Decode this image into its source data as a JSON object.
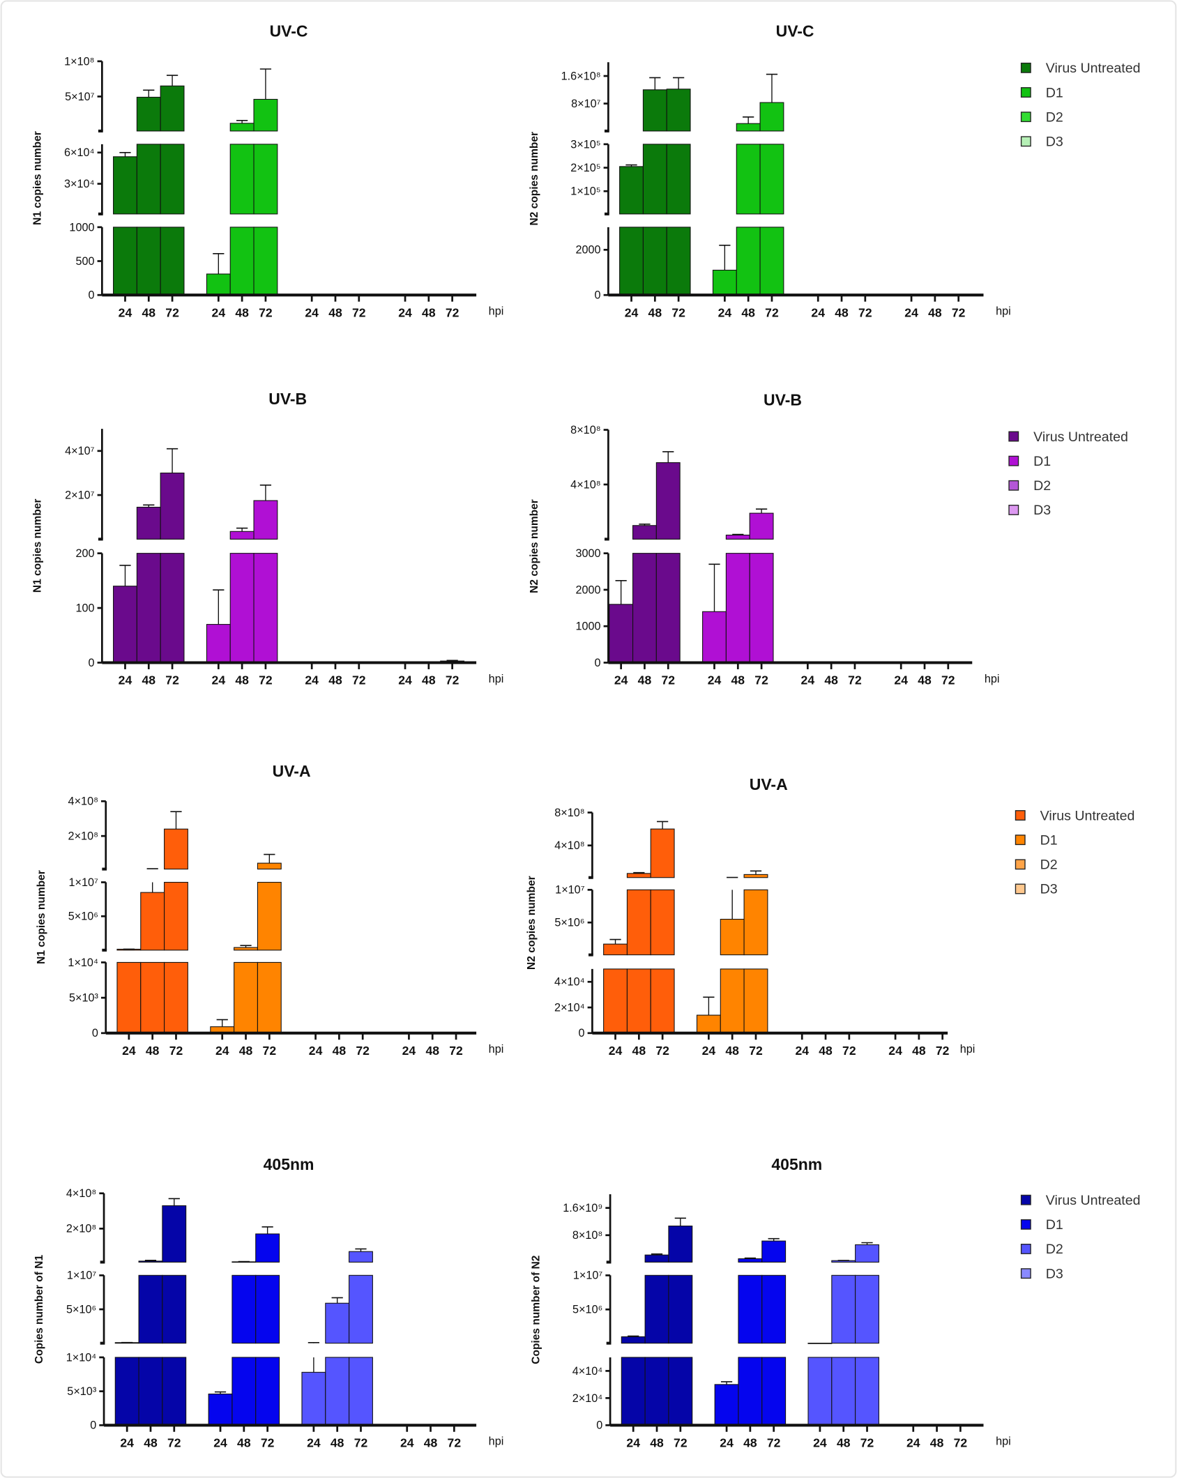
{
  "chart_data": [
    {
      "type": "bar",
      "title": "UV-C",
      "ylabel": "N1 copies number",
      "xlabel": "hpi",
      "categories": [
        "24",
        "48",
        "72"
      ],
      "legend_placement": "none",
      "y_segments": [
        {
          "range": [
            0,
            1000
          ],
          "ticks": [
            {
              "value": 0,
              "label": "0"
            },
            {
              "value": 500,
              "label": "500"
            },
            {
              "value": 1000,
              "label": "1000"
            }
          ]
        },
        {
          "range": [
            1000,
            68000
          ],
          "ticks": [
            {
              "value": 30000,
              "label": "3×10⁴"
            },
            {
              "value": 60000,
              "label": "6×10⁴"
            }
          ]
        },
        {
          "range": [
            1000000,
            100000000
          ],
          "ticks": [
            {
              "value": 50000000,
              "label": "5×10⁷"
            },
            {
              "value": 100000000,
              "label": "1×10⁸"
            }
          ]
        }
      ],
      "series": [
        {
          "name": "Virus Untreated",
          "color": "#0b7a0b",
          "values": [
            56000,
            49000000,
            65000000
          ],
          "errors": [
            60000,
            59000000,
            80000000
          ]
        },
        {
          "name": "D1",
          "color": "#12c212",
          "values": [
            310,
            12000000,
            46000000
          ],
          "errors": [
            610,
            16000000,
            89000000
          ]
        },
        {
          "name": "D2",
          "color": "#33dd33",
          "values": [
            0,
            0,
            0
          ],
          "errors": [
            0,
            0,
            0
          ]
        },
        {
          "name": "D3",
          "color": "#b6f0b6",
          "values": [
            0,
            0,
            0
          ],
          "errors": [
            0,
            0,
            0
          ]
        }
      ]
    },
    {
      "type": "bar",
      "title": "UV-C",
      "ylabel": "N2 copies number",
      "xlabel": "hpi",
      "categories": [
        "24",
        "48",
        "72"
      ],
      "legend_placement": "right",
      "y_segments": [
        {
          "range": [
            0,
            3000
          ],
          "ticks": [
            {
              "value": 0,
              "label": "0"
            },
            {
              "value": 2000,
              "label": "2000"
            }
          ]
        },
        {
          "range": [
            3000,
            300000
          ],
          "ticks": [
            {
              "value": 100000,
              "label": "1×10⁵"
            },
            {
              "value": 200000,
              "label": "2×10⁵"
            },
            {
              "value": 300000,
              "label": "3×10⁵"
            }
          ]
        },
        {
          "range": [
            300000,
            200000000
          ],
          "ticks": [
            {
              "value": 80000000,
              "label": "8×10⁷"
            },
            {
              "value": 160000000,
              "label": "1.6×10⁸"
            }
          ]
        }
      ],
      "series": [
        {
          "name": "Virus Untreated",
          "color": "#0b7a0b",
          "values": [
            205000,
            120000000,
            122000000
          ],
          "errors": [
            212000,
            155000000,
            155000000
          ]
        },
        {
          "name": "D1",
          "color": "#12c212",
          "values": [
            1100,
            22000000,
            83000000
          ],
          "errors": [
            2200,
            41000000,
            165000000
          ]
        },
        {
          "name": "D2",
          "color": "#33dd33",
          "values": [
            0,
            0,
            0
          ],
          "errors": [
            0,
            0,
            0
          ]
        },
        {
          "name": "D3",
          "color": "#b6f0b6",
          "values": [
            0,
            0,
            0
          ],
          "errors": [
            0,
            0,
            0
          ]
        }
      ]
    },
    {
      "type": "bar",
      "title": "UV-B",
      "ylabel": "N1 copies number",
      "xlabel": "hpi",
      "categories": [
        "24",
        "48",
        "72"
      ],
      "legend_placement": "none",
      "y_segments": [
        {
          "range": [
            0,
            200
          ],
          "ticks": [
            {
              "value": 0,
              "label": "0"
            },
            {
              "value": 100,
              "label": "100"
            },
            {
              "value": 200,
              "label": "200"
            }
          ]
        },
        {
          "range": [
            200,
            50000000
          ],
          "ticks": [
            {
              "value": 20000000,
              "label": "2×10⁷"
            },
            {
              "value": 40000000,
              "label": "4×10⁷"
            }
          ]
        }
      ],
      "series": [
        {
          "name": "Virus Untreated",
          "color": "#6a0a8c",
          "values": [
            140,
            14500000,
            30000000
          ],
          "errors": [
            178,
            15500000,
            41000000
          ]
        },
        {
          "name": "D1",
          "color": "#b010d4",
          "values": [
            70,
            3500000,
            17500000
          ],
          "errors": [
            133,
            5000000,
            24500000
          ]
        },
        {
          "name": "D2",
          "color": "#b456d8",
          "values": [
            1,
            1,
            1
          ],
          "errors": [
            1,
            1,
            1
          ]
        },
        {
          "name": "D3",
          "color": "#dc98f0",
          "values": [
            0,
            0,
            3
          ],
          "errors": [
            0,
            0,
            4
          ]
        }
      ]
    },
    {
      "type": "bar",
      "title": "UV-B",
      "ylabel": "N2 copies number",
      "xlabel": "hpi",
      "categories": [
        "24",
        "48",
        "72"
      ],
      "legend_placement": "right",
      "y_segments": [
        {
          "range": [
            0,
            3000
          ],
          "ticks": [
            {
              "value": 0,
              "label": "0"
            },
            {
              "value": 1000,
              "label": "1000"
            },
            {
              "value": 2000,
              "label": "2000"
            },
            {
              "value": 3000,
              "label": "3000"
            }
          ]
        },
        {
          "range": [
            3000,
            800000000
          ],
          "ticks": [
            {
              "value": 400000000,
              "label": "4×10⁸"
            },
            {
              "value": 800000000,
              "label": "8×10⁸"
            }
          ]
        }
      ],
      "series": [
        {
          "name": "Virus Untreated",
          "color": "#6a0a8c",
          "values": [
            1600,
            100000000,
            560000000
          ],
          "errors": [
            2250,
            110000000,
            640000000
          ]
        },
        {
          "name": "D1",
          "color": "#b010d4",
          "values": [
            1400,
            30000000,
            190000000
          ],
          "errors": [
            2700,
            35000000,
            220000000
          ]
        },
        {
          "name": "D2",
          "color": "#b456d8",
          "values": [
            0,
            0,
            0
          ],
          "errors": [
            0,
            0,
            0
          ]
        },
        {
          "name": "D3",
          "color": "#dc98f0",
          "values": [
            0,
            0,
            0
          ],
          "errors": [
            0,
            0,
            0
          ]
        }
      ]
    },
    {
      "type": "bar",
      "title": "UV-A",
      "ylabel": "N1 copies number",
      "xlabel": "hpi",
      "categories": [
        "24",
        "48",
        "72"
      ],
      "legend_placement": "none",
      "y_segments": [
        {
          "range": [
            0,
            10000
          ],
          "ticks": [
            {
              "value": 0,
              "label": "0"
            },
            {
              "value": 5000,
              "label": "5×10³"
            },
            {
              "value": 10000,
              "label": "1×10⁴"
            }
          ]
        },
        {
          "range": [
            10000,
            10000000
          ],
          "ticks": [
            {
              "value": 5000000,
              "label": "5×10⁶"
            },
            {
              "value": 10000000,
              "label": "1×10⁷"
            }
          ]
        },
        {
          "range": [
            10000000,
            400000000
          ],
          "ticks": [
            {
              "value": 200000000,
              "label": "2×10⁸"
            },
            {
              "value": 400000000,
              "label": "4×10⁸"
            }
          ]
        }
      ],
      "series": [
        {
          "name": "Virus Untreated",
          "color": "#ff5e0a",
          "values": [
            150000,
            8500000,
            240000000
          ],
          "errors": [
            160000,
            12000000,
            340000000
          ]
        },
        {
          "name": "D1",
          "color": "#ff8400",
          "values": [
            900,
            400000,
            44000000
          ],
          "errors": [
            1900,
            700000,
            94000000
          ]
        },
        {
          "name": "D2",
          "color": "#ffa448",
          "values": [
            0,
            0,
            0
          ],
          "errors": [
            0,
            0,
            0
          ]
        },
        {
          "name": "D3",
          "color": "#ffc88e",
          "values": [
            0,
            0,
            0
          ],
          "errors": [
            0,
            0,
            0
          ]
        }
      ]
    },
    {
      "type": "bar",
      "title": "UV-A",
      "ylabel": "N2 copies number",
      "xlabel": "hpi",
      "categories": [
        "24",
        "48",
        "72"
      ],
      "legend_placement": "right",
      "y_segments": [
        {
          "range": [
            0,
            50000
          ],
          "ticks": [
            {
              "value": 0,
              "label": "0"
            },
            {
              "value": 20000,
              "label": "2×10⁴"
            },
            {
              "value": 40000,
              "label": "4×10⁴"
            }
          ]
        },
        {
          "range": [
            50000,
            10000000
          ],
          "ticks": [
            {
              "value": 5000000,
              "label": "5×10⁶"
            },
            {
              "value": 10000000,
              "label": "1×10⁷"
            }
          ]
        },
        {
          "range": [
            10000000,
            800000000
          ],
          "ticks": [
            {
              "value": 400000000,
              "label": "4×10⁸"
            },
            {
              "value": 800000000,
              "label": "8×10⁸"
            }
          ]
        }
      ],
      "series": [
        {
          "name": "Virus Untreated",
          "color": "#ff5e0a",
          "values": [
            1700000,
            60000000,
            600000000
          ],
          "errors": [
            2400000,
            70000000,
            690000000
          ]
        },
        {
          "name": "D1",
          "color": "#ff8400",
          "values": [
            14000,
            5500000,
            47000000
          ],
          "errors": [
            28000,
            12000000,
            90000000
          ]
        },
        {
          "name": "D2",
          "color": "#ffa448",
          "values": [
            0,
            0,
            0
          ],
          "errors": [
            0,
            0,
            0
          ]
        },
        {
          "name": "D3",
          "color": "#ffc88e",
          "values": [
            0,
            0,
            0
          ],
          "errors": [
            0,
            0,
            0
          ]
        }
      ]
    },
    {
      "type": "bar",
      "title": "405nm",
      "ylabel": "Copies number of N1",
      "xlabel": "hpi",
      "categories": [
        "24",
        "48",
        "72"
      ],
      "legend_placement": "none",
      "y_segments": [
        {
          "range": [
            0,
            10000
          ],
          "ticks": [
            {
              "value": 0,
              "label": "0"
            },
            {
              "value": 5000,
              "label": "5×10³"
            },
            {
              "value": 10000,
              "label": "1×10⁴"
            }
          ]
        },
        {
          "range": [
            10000,
            10000000
          ],
          "ticks": [
            {
              "value": 5000000,
              "label": "5×10⁶"
            },
            {
              "value": 10000000,
              "label": "1×10⁷"
            }
          ]
        },
        {
          "range": [
            10000000,
            400000000
          ],
          "ticks": [
            {
              "value": 200000000,
              "label": "2×10⁸"
            },
            {
              "value": 400000000,
              "label": "4×10⁸"
            }
          ]
        }
      ],
      "series": [
        {
          "name": "Virus Untreated",
          "color": "#0505a8",
          "values": [
            100000,
            16000000,
            330000000
          ],
          "errors": [
            110000,
            20000000,
            370000000
          ],
          "note": ""
        },
        {
          "name": "D1",
          "color": "#0505ee",
          "values": [
            4600,
            12000000,
            170000000
          ],
          "errors": [
            4900,
            13000000,
            210000000
          ]
        },
        {
          "name": "D2",
          "color": "#5555ff",
          "values": [
            7800,
            5900000,
            70000000
          ],
          "errors": [
            100000,
            6700000,
            85000000
          ]
        },
        {
          "name": "D3",
          "color": "#8a8aff",
          "values": [
            0,
            0,
            0
          ],
          "errors": [
            0,
            0,
            0
          ]
        }
      ]
    },
    {
      "type": "bar",
      "title": "405nm",
      "ylabel": "Copies number of N2",
      "xlabel": "hpi",
      "categories": [
        "24",
        "48",
        "72"
      ],
      "legend_placement": "right",
      "y_segments": [
        {
          "range": [
            0,
            50000
          ],
          "ticks": [
            {
              "value": 0,
              "label": "0"
            },
            {
              "value": 20000,
              "label": "2×10⁴"
            },
            {
              "value": 40000,
              "label": "4×10⁴"
            }
          ]
        },
        {
          "range": [
            50000,
            10000000
          ],
          "ticks": [
            {
              "value": 5000000,
              "label": "5×10⁶"
            },
            {
              "value": 10000000,
              "label": "1×10⁷"
            }
          ]
        },
        {
          "range": [
            10000000,
            2000000000
          ],
          "ticks": [
            {
              "value": 800000000,
              "label": "8×10⁸"
            },
            {
              "value": 1600000000,
              "label": "1.6×10⁹"
            }
          ]
        }
      ],
      "series": [
        {
          "name": "Virus Untreated",
          "color": "#0505a8",
          "values": [
            1000000,
            220000000,
            1070000000
          ],
          "errors": [
            1100000,
            250000000,
            1300000000
          ]
        },
        {
          "name": "D1",
          "color": "#0505ee",
          "values": [
            30000,
            110000000,
            630000000
          ],
          "errors": [
            32000,
            130000000,
            700000000
          ]
        },
        {
          "name": "D2",
          "color": "#5555ff",
          "values": [
            60000,
            55000000,
            520000000
          ],
          "errors": [
            60000,
            60000000,
            580000000
          ]
        },
        {
          "name": "D3",
          "color": "#8a8aff",
          "values": [
            0,
            0,
            0
          ],
          "errors": [
            0,
            0,
            0
          ]
        }
      ]
    }
  ]
}
